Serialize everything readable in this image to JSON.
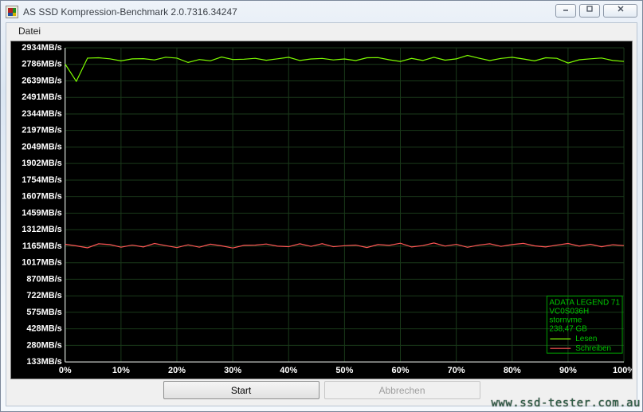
{
  "window": {
    "title": "AS SSD Kompression-Benchmark 2.0.7316.34247"
  },
  "menu": {
    "datei": "Datei"
  },
  "buttons": {
    "start": "Start",
    "abort": "Abbrechen"
  },
  "watermark": "www.ssd-tester.com.au",
  "chart": {
    "type": "line",
    "background_color": "#000000",
    "grid_color": "#1a3a1a",
    "axis_color": "#ffffff",
    "label_color": "#ffffff",
    "label_fontsize": 11,
    "y_unit": "MB/s",
    "y_ticks": [
      133,
      280,
      428,
      575,
      722,
      870,
      1017,
      1165,
      1312,
      1459,
      1607,
      1754,
      1902,
      2049,
      2197,
      2344,
      2491,
      2639,
      2786,
      2934
    ],
    "x_ticks_pct": [
      0,
      10,
      20,
      30,
      40,
      50,
      60,
      70,
      80,
      90,
      100
    ],
    "series": {
      "read": {
        "label": "Lesen",
        "color": "#7fff00",
        "values": [
          2789,
          2635,
          2842,
          2845,
          2836,
          2817,
          2835,
          2837,
          2826,
          2850,
          2842,
          2803,
          2829,
          2818,
          2852,
          2829,
          2832,
          2840,
          2823,
          2836,
          2849,
          2821,
          2834,
          2839,
          2826,
          2834,
          2820,
          2845,
          2846,
          2827,
          2812,
          2839,
          2821,
          2849,
          2824,
          2835,
          2866,
          2842,
          2820,
          2839,
          2849,
          2834,
          2817,
          2845,
          2840,
          2798,
          2827,
          2836,
          2843,
          2821,
          2812
        ]
      },
      "write": {
        "label": "Schreiben",
        "color": "#ff5555",
        "values": [
          1182,
          1168,
          1150,
          1186,
          1179,
          1156,
          1174,
          1158,
          1189,
          1170,
          1152,
          1177,
          1156,
          1183,
          1168,
          1149,
          1172,
          1174,
          1184,
          1165,
          1160,
          1186,
          1163,
          1187,
          1160,
          1169,
          1174,
          1153,
          1179,
          1172,
          1191,
          1158,
          1170,
          1193,
          1166,
          1181,
          1155,
          1174,
          1186,
          1163,
          1179,
          1190,
          1168,
          1158,
          1174,
          1189,
          1165,
          1182,
          1160,
          1178,
          1170
        ]
      }
    },
    "legend": {
      "border_color": "#00a000",
      "text_color": "#00c800",
      "device_line1": "ADATA LEGEND 71",
      "device_line2": "VC0S036H",
      "device_line3": "stornvme",
      "device_line4": "238,47 GB"
    }
  }
}
